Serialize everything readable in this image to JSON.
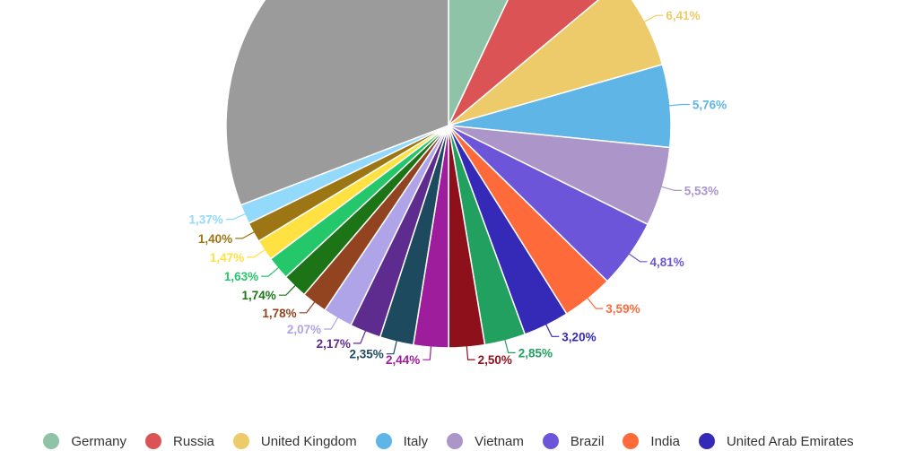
{
  "chart_data": {
    "type": "pie",
    "slices": [
      {
        "name": "Germany",
        "value": 6.74,
        "label": "",
        "color": "#8fc3a8"
      },
      {
        "name": "Russia",
        "value": 6.6,
        "label": "",
        "color": "#dc5356"
      },
      {
        "name": "United Kingdom",
        "value": 6.41,
        "label": "6,41%",
        "color": "#eecb6a"
      },
      {
        "name": "Italy",
        "value": 5.76,
        "label": "5,76%",
        "color": "#5fb5e6"
      },
      {
        "name": "Vietnam",
        "value": 5.53,
        "label": "5,53%",
        "color": "#ab95c9"
      },
      {
        "name": "Brazil",
        "value": 4.81,
        "label": "4,81%",
        "color": "#6d55d9"
      },
      {
        "name": "India",
        "value": 3.59,
        "label": "3,59%",
        "color": "#ff6a3b"
      },
      {
        "name": "United Arab Emirates",
        "value": 3.2,
        "label": "3,20%",
        "color": "#3529b8"
      },
      {
        "name": "",
        "value": 2.85,
        "label": "2,85%",
        "color": "#21a05f"
      },
      {
        "name": "",
        "value": 2.5,
        "label": "2,50%",
        "color": "#8e101b"
      },
      {
        "name": "",
        "value": 2.44,
        "label": "2,44%",
        "color": "#9e1d9c"
      },
      {
        "name": "",
        "value": 2.35,
        "label": "2,35%",
        "color": "#1e4a60"
      },
      {
        "name": "",
        "value": 2.17,
        "label": "2,17%",
        "color": "#5e2c8f"
      },
      {
        "name": "",
        "value": 2.07,
        "label": "2,07%",
        "color": "#b0a4e8"
      },
      {
        "name": "",
        "value": 1.78,
        "label": "1,78%",
        "color": "#92431f"
      },
      {
        "name": "",
        "value": 1.74,
        "label": "1,74%",
        "color": "#1c7416"
      },
      {
        "name": "",
        "value": 1.63,
        "label": "1,63%",
        "color": "#24c86a"
      },
      {
        "name": "",
        "value": 1.47,
        "label": "1,47%",
        "color": "#ffe141"
      },
      {
        "name": "",
        "value": 1.4,
        "label": "1,40%",
        "color": "#9c7614"
      },
      {
        "name": "",
        "value": 1.37,
        "label": "1,37%",
        "color": "#93d9fb"
      },
      {
        "name": "",
        "value": 29.59,
        "label": "",
        "color": "#9b9b9b"
      }
    ],
    "legend": [
      {
        "name": "Germany",
        "color": "#8fc3a8"
      },
      {
        "name": "Russia",
        "color": "#dc5356"
      },
      {
        "name": "United Kingdom",
        "color": "#eecb6a"
      },
      {
        "name": "Italy",
        "color": "#5fb5e6"
      },
      {
        "name": "Vietnam",
        "color": "#ab95c9"
      },
      {
        "name": "Brazil",
        "color": "#6d55d9"
      },
      {
        "name": "India",
        "color": "#ff6a3b"
      },
      {
        "name": "United Arab Emirates",
        "color": "#3529b8"
      }
    ],
    "legend_position": "bottom",
    "start": "top",
    "direction": "clockwise"
  }
}
